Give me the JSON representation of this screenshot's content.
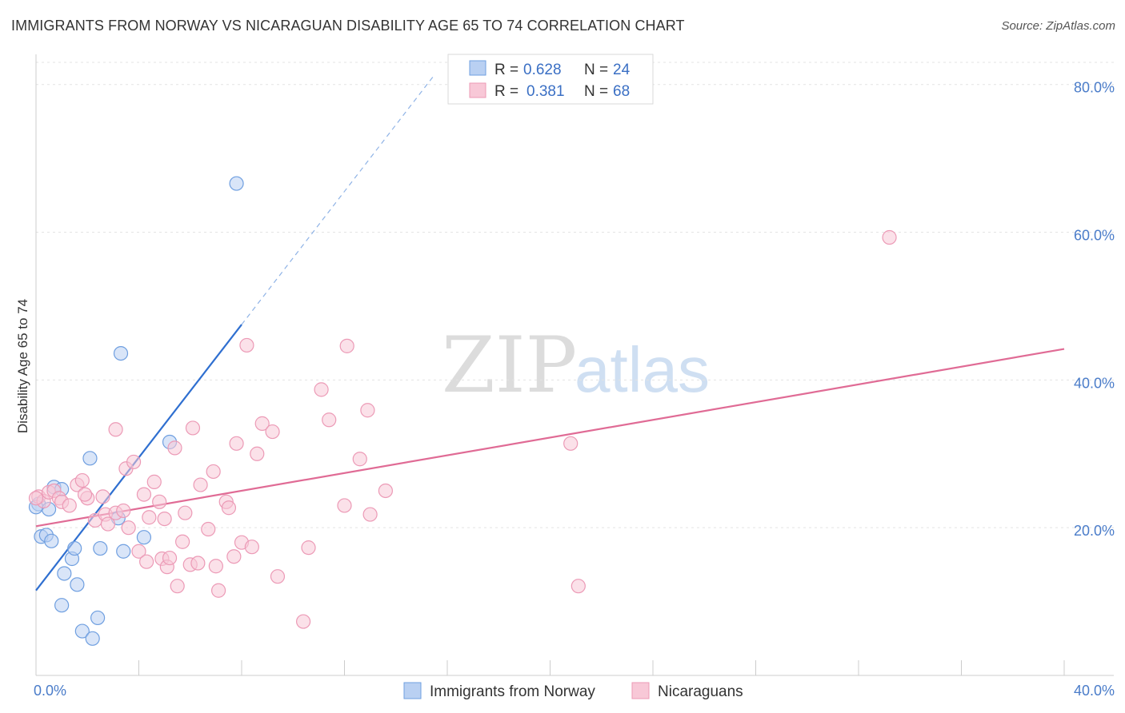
{
  "header": {
    "title": "IMMIGRANTS FROM NORWAY VS NICARAGUAN DISABILITY AGE 65 TO 74 CORRELATION CHART",
    "source": "Source: ZipAtlas.com"
  },
  "watermark": {
    "part1": "ZIP",
    "part2": "atlas"
  },
  "legend": {
    "r_label": "R =",
    "n_label": "N =",
    "entries": [
      {
        "r": "0.628",
        "n": "24"
      },
      {
        "r": "0.381",
        "n": "68"
      }
    ]
  },
  "chart_data": {
    "type": "scatter",
    "title": "IMMIGRANTS FROM NORWAY VS NICARAGUAN DISABILITY AGE 65 TO 74 CORRELATION CHART",
    "xlabel": "",
    "ylabel": "Disability Age 65 to 74",
    "xlim": [
      0,
      40
    ],
    "ylim": [
      0,
      83
    ],
    "x_tick_labels": [
      {
        "value": 0,
        "label": "0.0%"
      },
      {
        "value": 40,
        "label": "40.0%"
      }
    ],
    "y_tick_labels": [
      {
        "value": 20,
        "label": "20.0%"
      },
      {
        "value": 40,
        "label": "40.0%"
      },
      {
        "value": 60,
        "label": "60.0%"
      },
      {
        "value": 80,
        "label": "80.0%"
      }
    ],
    "series": [
      {
        "name": "Immigrants from Norway",
        "color": "#6f9fe0",
        "fill": "#b9d0f2",
        "trend_color": "#2f6fd0",
        "trend": {
          "x0": 0.0,
          "y0": 11.5,
          "x1": 8.0,
          "y1": 47.5,
          "dash_to_x": 15.5,
          "dash_to_y": 81.3
        },
        "points": [
          [
            0.1,
            23.2
          ],
          [
            0.2,
            18.8
          ],
          [
            0.4,
            19.0
          ],
          [
            0.5,
            22.5
          ],
          [
            0.6,
            18.2
          ],
          [
            0.7,
            25.5
          ],
          [
            1.0,
            25.2
          ],
          [
            1.1,
            13.8
          ],
          [
            1.4,
            15.8
          ],
          [
            1.5,
            17.2
          ],
          [
            1.6,
            12.3
          ],
          [
            1.0,
            9.5
          ],
          [
            2.1,
            29.4
          ],
          [
            1.8,
            6.0
          ],
          [
            2.2,
            5.0
          ],
          [
            2.4,
            7.8
          ],
          [
            2.5,
            17.2
          ],
          [
            3.2,
            21.3
          ],
          [
            3.3,
            43.6
          ],
          [
            3.4,
            16.8
          ],
          [
            4.2,
            18.7
          ],
          [
            5.2,
            31.6
          ],
          [
            7.8,
            66.6
          ],
          [
            0.0,
            22.8
          ]
        ]
      },
      {
        "name": "Nicaraguans",
        "color": "#ec9ab6",
        "fill": "#f8c8d7",
        "trend_color": "#e06b95",
        "trend": {
          "x0": 0.0,
          "y0": 20.2,
          "x1": 40.0,
          "y1": 44.2
        },
        "points": [
          [
            0.1,
            24.2
          ],
          [
            0.3,
            23.6
          ],
          [
            0.5,
            24.8
          ],
          [
            0.7,
            25.0
          ],
          [
            0.9,
            24.0
          ],
          [
            1.0,
            23.5
          ],
          [
            1.3,
            23.0
          ],
          [
            1.6,
            25.8
          ],
          [
            1.8,
            26.4
          ],
          [
            2.0,
            24.0
          ],
          [
            2.3,
            21.0
          ],
          [
            2.6,
            24.2
          ],
          [
            2.7,
            21.8
          ],
          [
            2.8,
            20.5
          ],
          [
            3.1,
            22.0
          ],
          [
            3.1,
            33.3
          ],
          [
            3.4,
            22.3
          ],
          [
            3.5,
            28.0
          ],
          [
            3.6,
            20.0
          ],
          [
            3.8,
            28.9
          ],
          [
            4.0,
            16.8
          ],
          [
            4.2,
            24.5
          ],
          [
            4.3,
            15.4
          ],
          [
            4.4,
            21.4
          ],
          [
            4.6,
            26.2
          ],
          [
            4.8,
            23.5
          ],
          [
            4.9,
            15.8
          ],
          [
            5.1,
            14.7
          ],
          [
            5.2,
            15.9
          ],
          [
            5.4,
            30.8
          ],
          [
            5.5,
            12.1
          ],
          [
            5.7,
            18.1
          ],
          [
            5.8,
            22.0
          ],
          [
            6.0,
            15.0
          ],
          [
            6.1,
            33.5
          ],
          [
            6.3,
            15.2
          ],
          [
            6.4,
            25.8
          ],
          [
            6.7,
            19.8
          ],
          [
            6.9,
            27.6
          ],
          [
            7.0,
            14.8
          ],
          [
            7.1,
            11.5
          ],
          [
            7.4,
            23.5
          ],
          [
            7.5,
            22.7
          ],
          [
            7.7,
            16.1
          ],
          [
            7.8,
            31.4
          ],
          [
            8.0,
            18.0
          ],
          [
            8.2,
            44.7
          ],
          [
            8.4,
            17.4
          ],
          [
            8.6,
            30.0
          ],
          [
            8.8,
            34.1
          ],
          [
            9.2,
            33.0
          ],
          [
            9.4,
            13.4
          ],
          [
            10.4,
            7.3
          ],
          [
            10.6,
            17.3
          ],
          [
            11.1,
            38.7
          ],
          [
            11.4,
            34.6
          ],
          [
            12.0,
            23.0
          ],
          [
            12.1,
            44.6
          ],
          [
            12.6,
            29.3
          ],
          [
            12.9,
            35.9
          ],
          [
            13.0,
            21.8
          ],
          [
            13.6,
            25.0
          ],
          [
            20.8,
            31.4
          ],
          [
            21.1,
            12.1
          ],
          [
            33.2,
            59.3
          ],
          [
            0.0,
            24.0
          ],
          [
            1.9,
            24.5
          ],
          [
            5.0,
            21.2
          ]
        ]
      }
    ]
  },
  "bottom_legend": {
    "items": [
      {
        "label": "Immigrants from Norway"
      },
      {
        "label": "Nicaraguans"
      }
    ]
  }
}
